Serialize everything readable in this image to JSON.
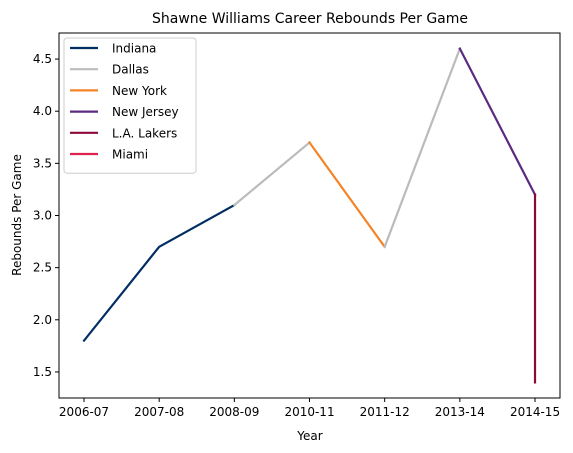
{
  "chart_data": {
    "type": "line",
    "title": "Shawne Williams Career Rebounds Per Game",
    "xlabel": "Year",
    "ylabel": "Rebounds Per Game",
    "categories": [
      "2006-07",
      "2007-08",
      "2008-09",
      "2010-11",
      "2011-12",
      "2013-14",
      "2014-15"
    ],
    "ylim": [
      1.25,
      4.75
    ],
    "yticks": [
      1.5,
      2.0,
      2.5,
      3.0,
      3.5,
      4.0,
      4.5
    ],
    "ytick_labels": [
      "1.5",
      "2.0",
      "2.5",
      "3.0",
      "3.5",
      "4.0",
      "4.5"
    ],
    "grid": false,
    "legend_position": "top-left",
    "series": [
      {
        "name": "Indiana",
        "color": "#002D62",
        "x": [
          "2006-07",
          "2007-08",
          "2008-09"
        ],
        "y": [
          1.8,
          2.7,
          3.1
        ]
      },
      {
        "name": "Dallas",
        "color": "#BBBBBB",
        "x": [
          "2008-09",
          "2010-11"
        ],
        "y": [
          3.1,
          3.7
        ]
      },
      {
        "name": "New York",
        "color": "#F58426",
        "x": [
          "2010-11",
          "2011-12"
        ],
        "y": [
          3.7,
          2.7
        ]
      },
      {
        "name": "Dallas",
        "color": "#BBBBBB",
        "x": [
          "2011-12",
          "2013-14"
        ],
        "y": [
          2.7,
          4.6
        ],
        "legend": false
      },
      {
        "name": "New Jersey",
        "color": "#5B2B82",
        "x": [
          "2013-14",
          "2014-15"
        ],
        "y": [
          4.6,
          3.2
        ]
      },
      {
        "name": "L.A. Lakers",
        "color": "#8B0A3A",
        "x": [
          "2014-15",
          "2014-15"
        ],
        "y": [
          3.2,
          1.4
        ]
      },
      {
        "name": "Miami",
        "color": "#E0234E",
        "x": [],
        "y": []
      }
    ]
  }
}
